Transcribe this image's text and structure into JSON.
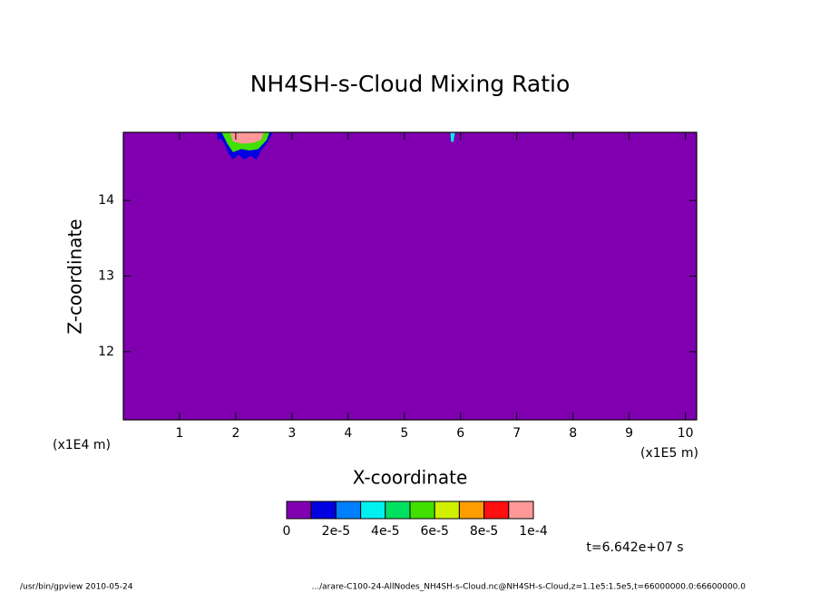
{
  "chart_data": {
    "type": "contour",
    "title": "NH4SH-s-Cloud Mixing Ratio",
    "xlabel": "X-coordinate",
    "ylabel": "Z-coordinate",
    "x_unit_left": "(x1E4 m)",
    "x_unit_right": "(x1E5 m)",
    "xlim": [
      0,
      10.2
    ],
    "xticks": [
      1,
      2,
      3,
      4,
      5,
      6,
      7,
      8,
      9,
      10
    ],
    "ylim": [
      11.1,
      14.9
    ],
    "yticks": [
      12,
      13,
      14
    ],
    "background_value": 0,
    "patches": [
      {
        "value": 1e-05,
        "x": [
          1.66,
          1.68,
          1.73,
          1.8,
          1.85,
          1.94,
          2.05,
          2.15,
          2.26,
          2.37,
          2.45,
          2.55,
          2.66
        ],
        "z": [
          14.9,
          14.8,
          14.82,
          14.75,
          14.65,
          14.54,
          14.6,
          14.54,
          14.59,
          14.54,
          14.66,
          14.75,
          14.9
        ]
      },
      {
        "value": 5e-05,
        "x": [
          1.75,
          1.85,
          1.95,
          2.1,
          2.25,
          2.4,
          2.55,
          2.6
        ],
        "z": [
          14.9,
          14.75,
          14.64,
          14.68,
          14.66,
          14.68,
          14.8,
          14.9
        ]
      },
      {
        "value": 9e-05,
        "x": [
          1.9,
          1.95,
          2.1,
          2.3,
          2.45,
          2.5
        ],
        "z": [
          14.9,
          14.78,
          14.75,
          14.76,
          14.8,
          14.9
        ]
      },
      {
        "value": 0.0001,
        "x": [
          1.95,
          2.0,
          2.3,
          2.4
        ],
        "z": [
          14.9,
          14.8,
          14.8,
          14.9
        ]
      },
      {
        "value": 3e-05,
        "x": [
          5.82,
          5.83,
          5.87,
          5.9
        ],
        "z": [
          14.9,
          14.78,
          14.77,
          14.9
        ]
      }
    ],
    "colorbar": {
      "levels": [
        0,
        1e-05,
        2e-05,
        3e-05,
        4e-05,
        5e-05,
        6e-05,
        7e-05,
        8e-05,
        9e-05,
        0.0001
      ],
      "colors": [
        "#8000b0",
        "#0000e0",
        "#0080ff",
        "#00f0f0",
        "#00e060",
        "#40e000",
        "#d0f000",
        "#ff9c00",
        "#ff1010",
        "#ff9898"
      ],
      "ticks": [
        0,
        {
          "value": 2e-05,
          "label": "2e-5"
        },
        {
          "value": 4e-05,
          "label": "4e-5"
        },
        {
          "value": 6e-05,
          "label": "6e-5"
        },
        {
          "value": 8e-05,
          "label": "8e-5"
        },
        {
          "value": 0.0001,
          "label": "1e-4"
        }
      ]
    },
    "time_label": "t=6.642e+07 s",
    "footer_left": "/usr/bin/gpview   2010-05-24",
    "footer_right": ".../arare-C100-24-AllNodes_NH4SH-s-Cloud.nc@NH4SH-s-Cloud,z=1.1e5:1.5e5,t=66000000.0:66600000.0"
  }
}
